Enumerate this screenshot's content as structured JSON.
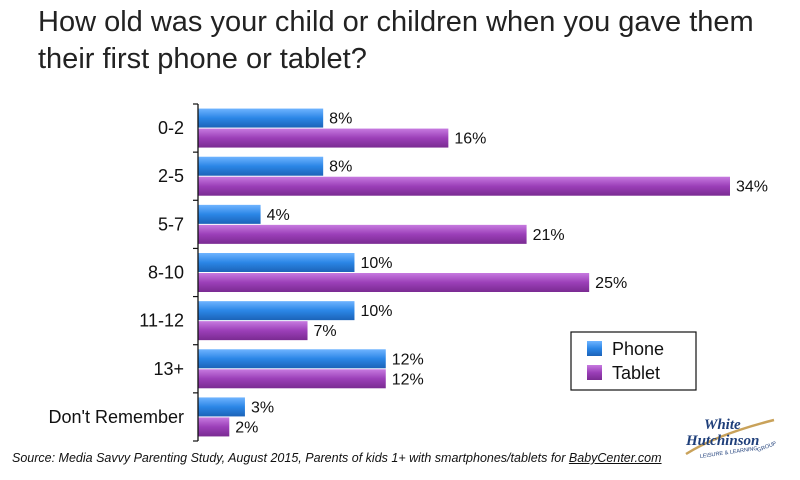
{
  "chart_data": {
    "type": "bar",
    "orientation": "horizontal",
    "title": "How old was your child or children when you gave them their first phone or tablet?",
    "categories": [
      "0-2",
      "2-5",
      "5-7",
      "8-10",
      "11-12",
      "13+",
      "Don't Remember"
    ],
    "series": [
      {
        "name": "Phone",
        "values": [
          8,
          8,
          4,
          10,
          10,
          12,
          3
        ],
        "labels": [
          "8%",
          "8%",
          "4%",
          "10%",
          "10%",
          "12%",
          "3%"
        ],
        "color": "#2b86e6"
      },
      {
        "name": "Tablet",
        "values": [
          16,
          34,
          21,
          25,
          7,
          12,
          2
        ],
        "labels": [
          "16%",
          "34%",
          "21%",
          "25%",
          "7%",
          "12%",
          "2%"
        ],
        "color": "#9b3fb8"
      }
    ],
    "value_unit": "%",
    "xlim": [
      0,
      34
    ],
    "grid": false,
    "legend_position": "bottom-right"
  },
  "source": {
    "prefix": "Source: Media Savvy Parenting Study, August 2015, Parents of kids 1+ with smartphones/tablets for ",
    "link": "BabyCenter.com"
  },
  "logo": {
    "line1": "White",
    "line2": "Hutchinson",
    "tagline_left": "LEISURE & LEARNING",
    "tagline_right": "GROUP",
    "color": "#1f3f7a",
    "accent": "#c9a25a"
  }
}
